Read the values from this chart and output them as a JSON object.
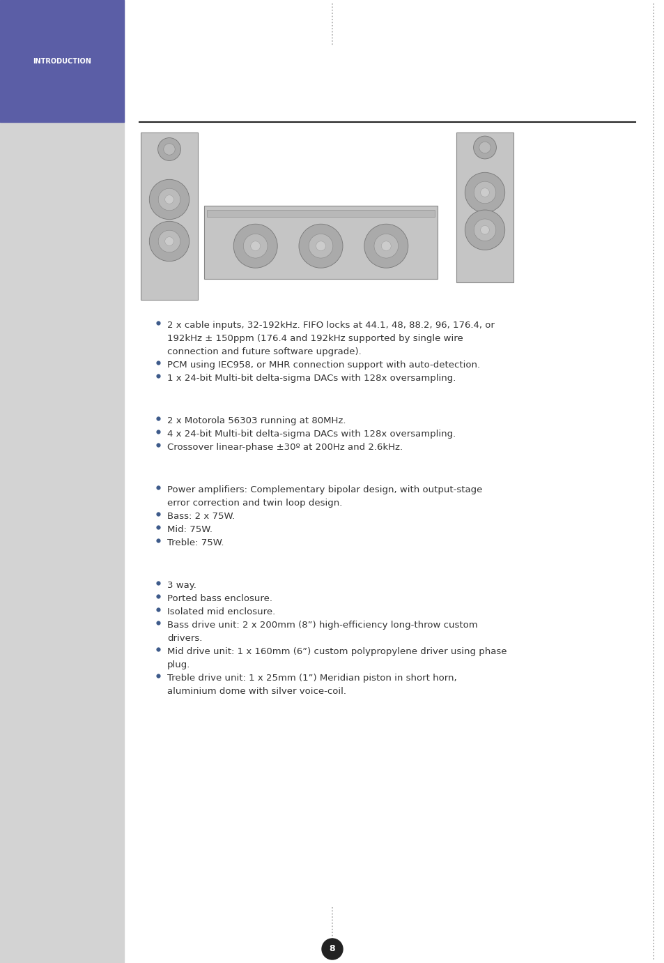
{
  "page_bg": "#ffffff",
  "left_sidebar_color": "#d3d3d3",
  "header_box_color": "#5b5ea6",
  "header_text": "INTRODUCTION",
  "header_text_color": "#ffffff",
  "header_font_size": 7,
  "bullet_color": "#3d5a8a",
  "text_color": "#333333",
  "line_color": "#222222",
  "dot_line_color": "#aaaaaa",
  "page_number": "8",
  "page_number_bg": "#222222",
  "page_number_color": "#ffffff",
  "section1_bullets": [
    "2 x cable inputs, 32-192kHz. FIFO locks at 44.1, 48, 88.2, 96, 176.4, or",
    "192kHz ± 150ppm (176.4 and 192kHz supported by single wire",
    "connection and future software upgrade).",
    "PCM using IEC958, or MHR connection support with auto-detection.",
    "1 x 24-bit Multi-bit delta-sigma DACs with 128x oversampling."
  ],
  "section1_bullet_flags": [
    true,
    false,
    false,
    true,
    true
  ],
  "section2_bullets": [
    "2 x Motorola 56303 running at 80MHz.",
    "4 x 24-bit Multi-bit delta-sigma DACs with 128x oversampling.",
    "Crossover linear-phase ±30º at 200Hz and 2.6kHz."
  ],
  "section2_bullet_flags": [
    true,
    true,
    true
  ],
  "section3_bullets": [
    "Power amplifiers: Complementary bipolar design, with output-stage",
    "error correction and twin loop design.",
    "Bass: 2 x 75W.",
    "Mid: 75W.",
    "Treble: 75W."
  ],
  "section3_bullet_flags": [
    true,
    false,
    true,
    true,
    true
  ],
  "section4_bullets": [
    "3 way.",
    "Ported bass enclosure.",
    "Isolated mid enclosure.",
    "Bass drive unit: 2 x 200mm (8”) high-efficiency long-throw custom",
    "drivers.",
    "Mid drive unit: 1 x 160mm (6”) custom polypropylene driver using phase",
    "plug.",
    "Treble drive unit: 1 x 25mm (1”) Meridian piston in short horn,",
    "aluminium dome with silver voice-coil."
  ],
  "section4_bullet_flags": [
    true,
    true,
    true,
    true,
    false,
    true,
    false,
    true,
    false
  ]
}
